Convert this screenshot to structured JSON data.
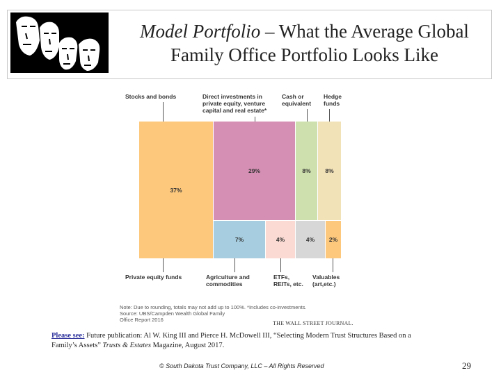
{
  "header": {
    "title_italic": "Model Portfolio",
    "title_rest": " – What the Average Global",
    "title_line2": "Family Office Portfolio Looks Like"
  },
  "chart_data": {
    "type": "treemap",
    "top_labels": [
      "Stocks and bonds",
      "Direct investments in\nprivate equity, venture\ncapital and real estate*",
      "Cash or\nequivalent",
      "Hedge\nfunds"
    ],
    "bottom_labels": [
      "Private equity funds",
      "Agriculture and\ncommodities",
      "ETFs,\nREITs, etc.",
      "Valuables\n(art,etc.)"
    ],
    "segments": [
      {
        "name": "Stocks and bonds",
        "value": 37,
        "label": "37%",
        "color": "#fdc87c"
      },
      {
        "name": "Direct investments in private equity, venture capital and real estate",
        "value": 29,
        "label": "29%",
        "color": "#d68fb4"
      },
      {
        "name": "Cash or equivalent",
        "value": 8,
        "label": "8%",
        "color": "#cde0ad"
      },
      {
        "name": "Hedge funds",
        "value": 8,
        "label": "8%",
        "color": "#f2e2b8"
      },
      {
        "name": "Private equity funds",
        "value": 7,
        "label": "7%",
        "color": "#a7cee0"
      },
      {
        "name": "Agriculture and commodities",
        "value": 4,
        "label": "4%",
        "color": "#fadad2"
      },
      {
        "name": "ETFs, REITs, etc.",
        "value": 4,
        "label": "4%",
        "color": "#d7d7d7"
      },
      {
        "name": "Valuables (art, etc.)",
        "value": 2,
        "label": "2%",
        "color": "#fdc87c"
      }
    ],
    "note": "Note: Due to rounding, totals may not add up to 100%. *Includes co-investments.\nSource: UBS/Campden Wealth Global Family\nOffice Report 2016",
    "credit": "THE WALL STREET JOURNAL."
  },
  "citation": {
    "lead": "Please see:",
    "text_line1": " Future publication: Al W. King III and Pierce H. McDowell III, “Selecting Modern Trust Structures Based on a",
    "text_line2a": "Family’s Assets” ",
    "journal": "Trusts & Estates",
    "text_line2b": " Magazine, August 2017."
  },
  "footer": {
    "copyright": "© South Dakota Trust Company, LLC – All Rights Reserved",
    "page_number": "29"
  }
}
